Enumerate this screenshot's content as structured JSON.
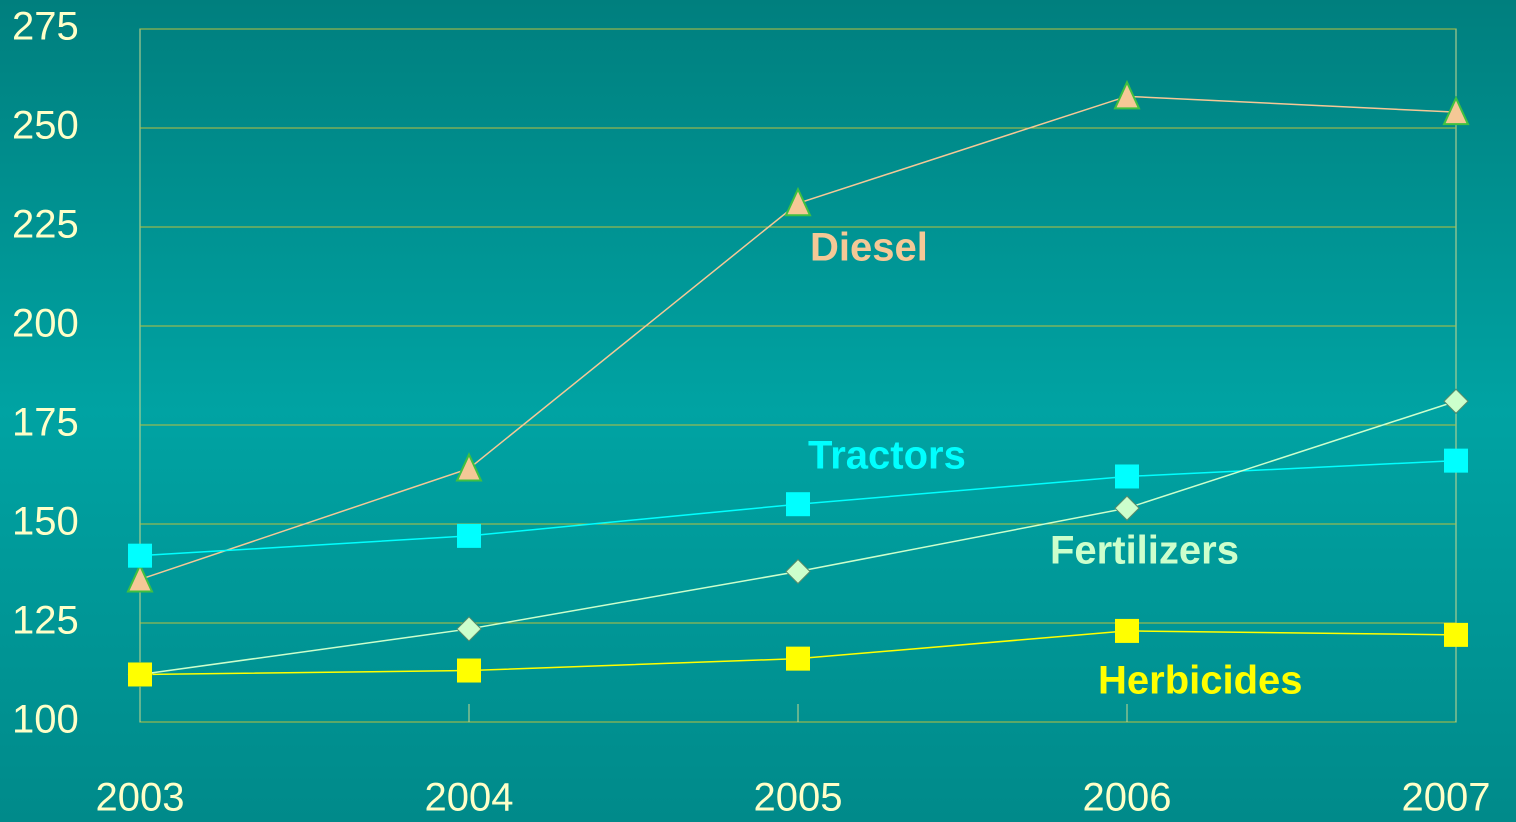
{
  "chart_data": {
    "type": "line",
    "categories": [
      "2003",
      "2004",
      "2005",
      "2006",
      "2007"
    ],
    "series": [
      {
        "name": "Diesel",
        "color": "#f5c896",
        "marker": "triangle",
        "values": [
          136,
          164,
          231,
          258,
          254
        ]
      },
      {
        "name": "Tractors",
        "color": "#00ffff",
        "marker": "square",
        "values": [
          142,
          147,
          155,
          162,
          166
        ]
      },
      {
        "name": "Fertilizers",
        "color": "#ccffcc",
        "marker": "diamond",
        "values": [
          112,
          123.5,
          138,
          154,
          181
        ]
      },
      {
        "name": "Herbicides",
        "color": "#ffff00",
        "marker": "square",
        "values": [
          112,
          113,
          116,
          123,
          122
        ]
      }
    ],
    "ylim": [
      100,
      275
    ],
    "yticks": [
      100,
      125,
      150,
      175,
      200,
      225,
      250,
      275
    ],
    "grid": true
  }
}
